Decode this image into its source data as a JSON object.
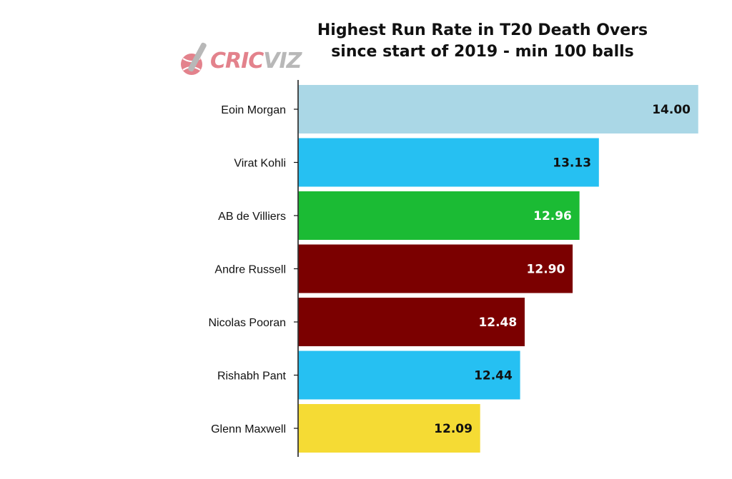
{
  "title_lines": [
    "Highest Run Rate in T20 Death Overs",
    "since start of 2019 - min 100 balls"
  ],
  "logo": {
    "text_part1": "CRIC",
    "text_part2": "VIZ"
  },
  "chart_data": {
    "type": "bar",
    "orientation": "horizontal",
    "title": "Highest Run Rate in T20 Death Overs since start of 2019 - min 100 balls",
    "categories": [
      "Eoin Morgan",
      "Virat Kohli",
      "AB de Villiers",
      "Andre Russell",
      "Nicolas Pooran",
      "Rishabh Pant",
      "Glenn Maxwell"
    ],
    "values": [
      14.0,
      13.13,
      12.96,
      12.9,
      12.48,
      12.44,
      12.09
    ],
    "value_labels": [
      "14.00",
      "13.13",
      "12.96",
      "12.90",
      "12.48",
      "12.44",
      "12.09"
    ],
    "bar_colors": [
      "#aad7e6",
      "#26c0f2",
      "#1bbb34",
      "#7b0000",
      "#7b0000",
      "#26c0f2",
      "#f5db34"
    ],
    "label_colors": [
      "#111111",
      "#111111",
      "#ffffff",
      "#ffffff",
      "#ffffff",
      "#111111",
      "#111111"
    ],
    "xlim": [
      10.5,
      14.0
    ],
    "grid": false,
    "xlabel": "",
    "ylabel": ""
  }
}
